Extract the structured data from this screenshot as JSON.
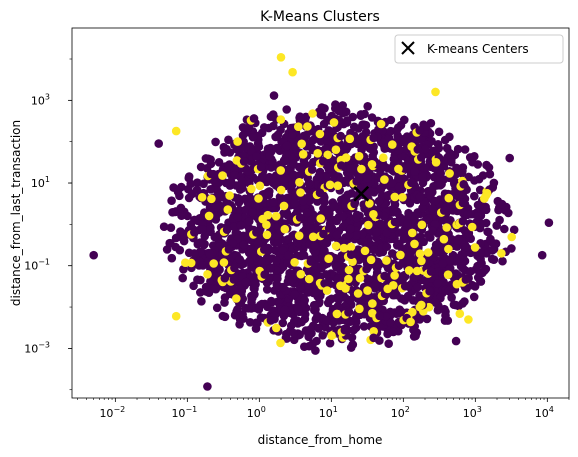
{
  "chart_data": {
    "type": "scatter",
    "title": "K-Means Clusters",
    "xlabel": "distance_from_home",
    "ylabel": "distance_from_last_transaction",
    "xscale": "log",
    "yscale": "log",
    "xlim": [
      0.0025,
      20000
    ],
    "ylim": [
      6.31e-05,
      56234
    ],
    "xticks": [
      {
        "value": 0.01,
        "base": "10",
        "exp": "−2"
      },
      {
        "value": 0.1,
        "base": "10",
        "exp": "−1"
      },
      {
        "value": 1,
        "base": "10",
        "exp": "0"
      },
      {
        "value": 10,
        "base": "10",
        "exp": "1"
      },
      {
        "value": 100,
        "base": "10",
        "exp": "2"
      },
      {
        "value": 1000,
        "base": "10",
        "exp": "3"
      },
      {
        "value": 10000,
        "base": "10",
        "exp": "4"
      }
    ],
    "yticks": [
      {
        "value": 0.001,
        "base": "10",
        "exp": "−3"
      },
      {
        "value": 0.1,
        "base": "10",
        "exp": "−1"
      },
      {
        "value": 10,
        "base": "10",
        "exp": "1"
      },
      {
        "value": 1000,
        "base": "10",
        "exp": "3"
      }
    ],
    "cluster_colors": [
      "#440154",
      "#fde725"
    ],
    "center_color": "#000000",
    "legend": {
      "label": "K-means Centers",
      "placement": "top-right"
    },
    "centers": [
      {
        "x": 26,
        "y": 5.5
      }
    ],
    "cloud": {
      "x_log_range": [
        -1.4,
        3.6
      ],
      "y_log_range": [
        -3.2,
        3.0
      ],
      "dense_core": {
        "x": [
          0.1,
          1000
        ],
        "y": [
          0.003,
          300
        ]
      }
    },
    "outliers": [
      {
        "x": 0.005,
        "y": 0.18,
        "cluster": 0
      },
      {
        "x": 0.19,
        "y": 0.00012,
        "cluster": 0
      },
      {
        "x": 2.0,
        "y": 11000,
        "cluster": 1
      },
      {
        "x": 2.9,
        "y": 4800,
        "cluster": 1
      },
      {
        "x": 1.6,
        "y": 1300,
        "cluster": 0
      },
      {
        "x": 10500,
        "y": 1.1,
        "cluster": 0
      },
      {
        "x": 8500,
        "y": 0.18,
        "cluster": 0
      },
      {
        "x": 0.07,
        "y": 180,
        "cluster": 1
      },
      {
        "x": 0.07,
        "y": 0.006,
        "cluster": 1
      },
      {
        "x": 2300,
        "y": 0.2,
        "cluster": 1
      },
      {
        "x": 540,
        "y": 0.0015,
        "cluster": 0
      },
      {
        "x": 3000,
        "y": 40,
        "cluster": 0
      },
      {
        "x": 800,
        "y": 0.005,
        "cluster": 1
      },
      {
        "x": 0.04,
        "y": 90,
        "cluster": 0
      },
      {
        "x": 280,
        "y": 1600,
        "cluster": 1
      }
    ],
    "grid": false
  }
}
